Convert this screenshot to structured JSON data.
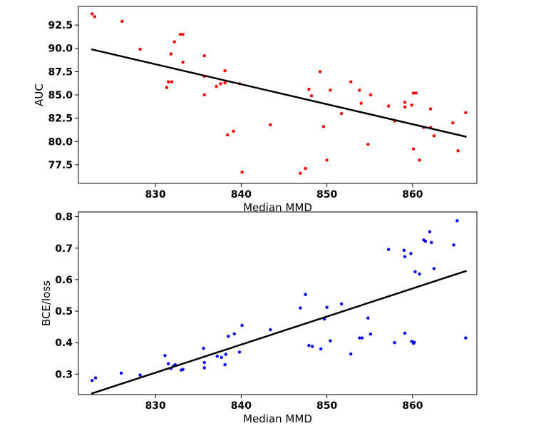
{
  "chart_data": [
    {
      "type": "scatter",
      "title": "",
      "xlabel": "Median MMD",
      "ylabel": "AUC",
      "xlim": [
        821,
        867.5
      ],
      "ylim": [
        75.5,
        94.5
      ],
      "xticks": [
        830,
        840,
        850,
        860
      ],
      "yticks": [
        77.5,
        80.0,
        82.5,
        85.0,
        87.5,
        90.0,
        92.5
      ],
      "ytick_labels": [
        "77.5",
        "80.0",
        "82.5",
        "85.0",
        "87.5",
        "90.0",
        "92.5"
      ],
      "grid": false,
      "point_color": "#ff0000",
      "line_color": "#000000",
      "points": [
        {
          "x": 822.6,
          "y": 93.7
        },
        {
          "x": 822.9,
          "y": 93.4
        },
        {
          "x": 826.1,
          "y": 92.9
        },
        {
          "x": 828.2,
          "y": 89.9
        },
        {
          "x": 831.3,
          "y": 85.8
        },
        {
          "x": 831.5,
          "y": 86.4
        },
        {
          "x": 831.9,
          "y": 86.4
        },
        {
          "x": 831.8,
          "y": 89.4
        },
        {
          "x": 832.2,
          "y": 90.7
        },
        {
          "x": 832.9,
          "y": 91.5
        },
        {
          "x": 833.2,
          "y": 91.5
        },
        {
          "x": 833.2,
          "y": 88.5
        },
        {
          "x": 835.7,
          "y": 89.2
        },
        {
          "x": 835.7,
          "y": 87.0
        },
        {
          "x": 835.7,
          "y": 85.0
        },
        {
          "x": 837.1,
          "y": 85.9
        },
        {
          "x": 837.6,
          "y": 86.2
        },
        {
          "x": 838.1,
          "y": 87.6
        },
        {
          "x": 838.1,
          "y": 86.3
        },
        {
          "x": 838.4,
          "y": 80.7
        },
        {
          "x": 839.1,
          "y": 81.1
        },
        {
          "x": 839.8,
          "y": 86.2
        },
        {
          "x": 840.1,
          "y": 76.7
        },
        {
          "x": 843.4,
          "y": 81.8
        },
        {
          "x": 846.9,
          "y": 76.6
        },
        {
          "x": 847.5,
          "y": 77.1
        },
        {
          "x": 847.9,
          "y": 85.6
        },
        {
          "x": 848.2,
          "y": 84.9
        },
        {
          "x": 849.2,
          "y": 87.5
        },
        {
          "x": 849.6,
          "y": 81.6
        },
        {
          "x": 850.0,
          "y": 78.0
        },
        {
          "x": 850.4,
          "y": 85.5
        },
        {
          "x": 851.7,
          "y": 83.0
        },
        {
          "x": 852.8,
          "y": 86.4
        },
        {
          "x": 853.8,
          "y": 85.5
        },
        {
          "x": 854.0,
          "y": 84.1
        },
        {
          "x": 854.8,
          "y": 79.7
        },
        {
          "x": 855.1,
          "y": 85.0
        },
        {
          "x": 857.2,
          "y": 83.8
        },
        {
          "x": 857.9,
          "y": 82.2
        },
        {
          "x": 859.1,
          "y": 84.2
        },
        {
          "x": 859.1,
          "y": 83.7
        },
        {
          "x": 859.9,
          "y": 83.9
        },
        {
          "x": 860.1,
          "y": 85.2
        },
        {
          "x": 860.4,
          "y": 85.2
        },
        {
          "x": 860.1,
          "y": 79.2
        },
        {
          "x": 860.8,
          "y": 78.0
        },
        {
          "x": 861.3,
          "y": 81.5
        },
        {
          "x": 862.1,
          "y": 83.5
        },
        {
          "x": 862.1,
          "y": 81.5
        },
        {
          "x": 862.5,
          "y": 80.6
        },
        {
          "x": 864.7,
          "y": 82.0
        },
        {
          "x": 865.3,
          "y": 79.0
        },
        {
          "x": 866.2,
          "y": 83.1
        }
      ],
      "fit_line": [
        {
          "x": 822.5,
          "y": 89.9
        },
        {
          "x": 866.3,
          "y": 80.5
        }
      ]
    },
    {
      "type": "scatter",
      "title": "",
      "xlabel": "Median MMD",
      "ylabel": "BCE/loss",
      "xlim": [
        821,
        867.5
      ],
      "ylim": [
        0.235,
        0.815
      ],
      "xticks": [
        830,
        840,
        850,
        860
      ],
      "yticks": [
        0.3,
        0.4,
        0.5,
        0.6,
        0.7,
        0.8
      ],
      "ytick_labels": [
        "0.3",
        "0.4",
        "0.5",
        "0.6",
        "0.7",
        "0.8"
      ],
      "grid": false,
      "point_color": "#0000ff",
      "line_color": "#000000",
      "points": [
        {
          "x": 822.6,
          "y": 0.28
        },
        {
          "x": 823.0,
          "y": 0.288
        },
        {
          "x": 826.0,
          "y": 0.303
        },
        {
          "x": 828.2,
          "y": 0.297
        },
        {
          "x": 831.1,
          "y": 0.359
        },
        {
          "x": 831.5,
          "y": 0.333
        },
        {
          "x": 831.8,
          "y": 0.318
        },
        {
          "x": 832.1,
          "y": 0.326
        },
        {
          "x": 832.3,
          "y": 0.33
        },
        {
          "x": 833.0,
          "y": 0.313
        },
        {
          "x": 833.2,
          "y": 0.315
        },
        {
          "x": 835.6,
          "y": 0.382
        },
        {
          "x": 835.7,
          "y": 0.337
        },
        {
          "x": 835.7,
          "y": 0.32
        },
        {
          "x": 837.2,
          "y": 0.357
        },
        {
          "x": 837.7,
          "y": 0.353
        },
        {
          "x": 838.1,
          "y": 0.33
        },
        {
          "x": 838.2,
          "y": 0.363
        },
        {
          "x": 838.5,
          "y": 0.42
        },
        {
          "x": 839.2,
          "y": 0.428
        },
        {
          "x": 839.8,
          "y": 0.37
        },
        {
          "x": 840.1,
          "y": 0.455
        },
        {
          "x": 843.4,
          "y": 0.441
        },
        {
          "x": 846.9,
          "y": 0.51
        },
        {
          "x": 847.5,
          "y": 0.553
        },
        {
          "x": 847.9,
          "y": 0.391
        },
        {
          "x": 848.3,
          "y": 0.388
        },
        {
          "x": 849.3,
          "y": 0.38
        },
        {
          "x": 849.7,
          "y": 0.475
        },
        {
          "x": 850.0,
          "y": 0.512
        },
        {
          "x": 850.4,
          "y": 0.406
        },
        {
          "x": 851.7,
          "y": 0.523
        },
        {
          "x": 852.8,
          "y": 0.364
        },
        {
          "x": 853.8,
          "y": 0.415
        },
        {
          "x": 854.1,
          "y": 0.415
        },
        {
          "x": 854.8,
          "y": 0.478
        },
        {
          "x": 855.1,
          "y": 0.427
        },
        {
          "x": 857.2,
          "y": 0.696
        },
        {
          "x": 857.9,
          "y": 0.4
        },
        {
          "x": 859.0,
          "y": 0.693
        },
        {
          "x": 859.1,
          "y": 0.673
        },
        {
          "x": 859.1,
          "y": 0.43
        },
        {
          "x": 859.8,
          "y": 0.683
        },
        {
          "x": 859.9,
          "y": 0.404
        },
        {
          "x": 860.1,
          "y": 0.398
        },
        {
          "x": 860.2,
          "y": 0.401
        },
        {
          "x": 860.3,
          "y": 0.625
        },
        {
          "x": 860.8,
          "y": 0.618
        },
        {
          "x": 861.3,
          "y": 0.726
        },
        {
          "x": 861.5,
          "y": 0.722
        },
        {
          "x": 862.0,
          "y": 0.752
        },
        {
          "x": 862.2,
          "y": 0.718
        },
        {
          "x": 862.5,
          "y": 0.635
        },
        {
          "x": 864.8,
          "y": 0.71
        },
        {
          "x": 865.2,
          "y": 0.787
        },
        {
          "x": 866.2,
          "y": 0.415
        }
      ],
      "fit_line": [
        {
          "x": 822.5,
          "y": 0.238
        },
        {
          "x": 866.3,
          "y": 0.628
        }
      ]
    }
  ]
}
